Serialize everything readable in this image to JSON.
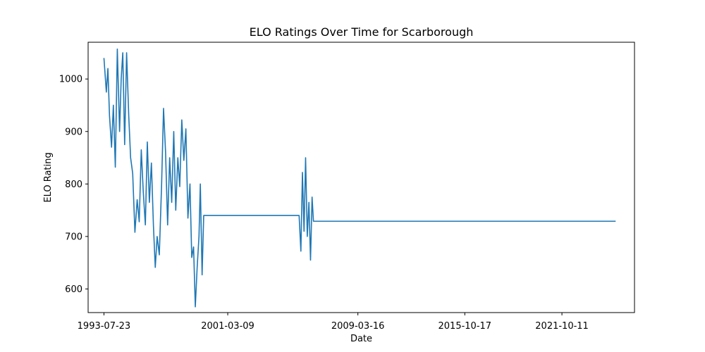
{
  "chart_data": {
    "type": "line",
    "title": "ELO Ratings Over Time for Scarborough",
    "xlabel": "Date",
    "ylabel": "ELO Rating",
    "x_tick_labels": [
      "1993-07-23",
      "2001-03-09",
      "2009-03-16",
      "2015-10-17",
      "2021-10-11"
    ],
    "y_ticks": [
      600,
      700,
      800,
      900,
      1000
    ],
    "ylim": [
      555,
      1070
    ],
    "xlim": [
      "1992-08-01",
      "2026-04-01"
    ],
    "grid": false,
    "legend": "none",
    "series": [
      {
        "color": "#1f77b4",
        "points": [
          [
            "1993-07-23",
            1040
          ],
          [
            "1993-09-15",
            975
          ],
          [
            "1993-10-20",
            1020
          ],
          [
            "1993-11-25",
            930
          ],
          [
            "1994-01-10",
            870
          ],
          [
            "1994-02-20",
            950
          ],
          [
            "1994-04-05",
            832
          ],
          [
            "1994-05-20",
            1057
          ],
          [
            "1994-07-10",
            900
          ],
          [
            "1994-08-15",
            1000
          ],
          [
            "1994-09-20",
            1050
          ],
          [
            "1994-11-01",
            875
          ],
          [
            "1994-12-15",
            1050
          ],
          [
            "1995-02-01",
            930
          ],
          [
            "1995-03-15",
            850
          ],
          [
            "1995-05-01",
            820
          ],
          [
            "1995-06-20",
            708
          ],
          [
            "1995-08-10",
            770
          ],
          [
            "1995-09-25",
            728
          ],
          [
            "1995-11-10",
            865
          ],
          [
            "1995-12-25",
            785
          ],
          [
            "1996-02-10",
            722
          ],
          [
            "1996-03-25",
            880
          ],
          [
            "1996-05-10",
            765
          ],
          [
            "1996-06-25",
            840
          ],
          [
            "1996-08-10",
            720
          ],
          [
            "1996-09-20",
            641
          ],
          [
            "1996-11-01",
            700
          ],
          [
            "1996-12-20",
            665
          ],
          [
            "1997-02-10",
            800
          ],
          [
            "1997-03-25",
            944
          ],
          [
            "1997-05-10",
            860
          ],
          [
            "1997-06-25",
            722
          ],
          [
            "1997-08-10",
            850
          ],
          [
            "1997-09-25",
            765
          ],
          [
            "1997-11-10",
            900
          ],
          [
            "1997-12-25",
            750
          ],
          [
            "1998-02-10",
            850
          ],
          [
            "1998-03-25",
            795
          ],
          [
            "1998-05-10",
            922
          ],
          [
            "1998-06-25",
            845
          ],
          [
            "1998-08-10",
            905
          ],
          [
            "1998-09-25",
            735
          ],
          [
            "1998-11-10",
            800
          ],
          [
            "1998-12-20",
            660
          ],
          [
            "1999-01-30",
            680
          ],
          [
            "1999-03-10",
            566
          ],
          [
            "1999-04-20",
            640
          ],
          [
            "1999-06-01",
            700
          ],
          [
            "1999-07-01",
            800
          ],
          [
            "1999-08-10",
            627
          ],
          [
            "1999-09-15",
            740
          ],
          [
            "2000-06-01",
            740
          ],
          [
            "2002-06-01",
            740
          ],
          [
            "2004-06-01",
            740
          ],
          [
            "2005-08-01",
            740
          ],
          [
            "2005-09-10",
            672
          ],
          [
            "2005-10-15",
            822
          ],
          [
            "2005-11-20",
            710
          ],
          [
            "2005-12-25",
            850
          ],
          [
            "2006-02-01",
            700
          ],
          [
            "2006-03-10",
            765
          ],
          [
            "2006-04-15",
            655
          ],
          [
            "2006-05-20",
            775
          ],
          [
            "2006-06-20",
            729
          ],
          [
            "2010-01-01",
            729
          ],
          [
            "2015-01-01",
            729
          ],
          [
            "2020-01-01",
            729
          ],
          [
            "2025-02-01",
            729
          ]
        ]
      }
    ]
  }
}
